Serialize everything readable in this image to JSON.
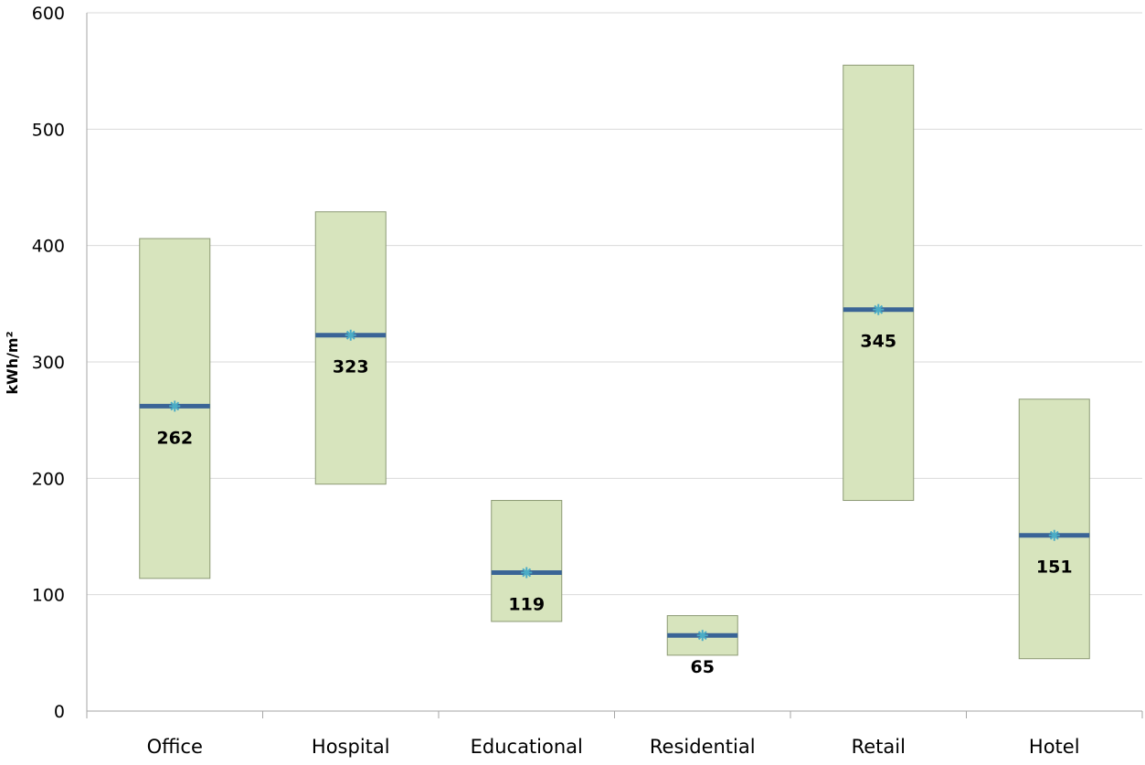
{
  "chart_data": {
    "type": "floating-bar",
    "title": "",
    "ylabel": "kWh/m²",
    "xlabel": "",
    "ylim": [
      0,
      600
    ],
    "yticks": [
      0,
      100,
      200,
      300,
      400,
      500,
      600
    ],
    "grid": true,
    "legend": "none",
    "categories": [
      "Office",
      "Hospital",
      "Educational",
      "Residential",
      "Retail",
      "Hotel"
    ],
    "ranges": [
      {
        "low": 114,
        "high": 406
      },
      {
        "low": 195,
        "high": 429
      },
      {
        "low": 77,
        "high": 181
      },
      {
        "low": 48,
        "high": 82
      },
      {
        "low": 181,
        "high": 555
      },
      {
        "low": 45,
        "high": 268
      }
    ],
    "values": [
      262,
      323,
      119,
      65,
      345,
      151
    ],
    "value_labels": [
      "262",
      "323",
      "119",
      "65",
      "345",
      "151"
    ],
    "colors": {
      "box_fill": "#d7e4bd",
      "box_stroke": "#8c9a74",
      "median_line": "#3a6496",
      "marker": "#4bacc6",
      "grid": "#d9d9d9",
      "axis": "#a6a6a6"
    }
  }
}
